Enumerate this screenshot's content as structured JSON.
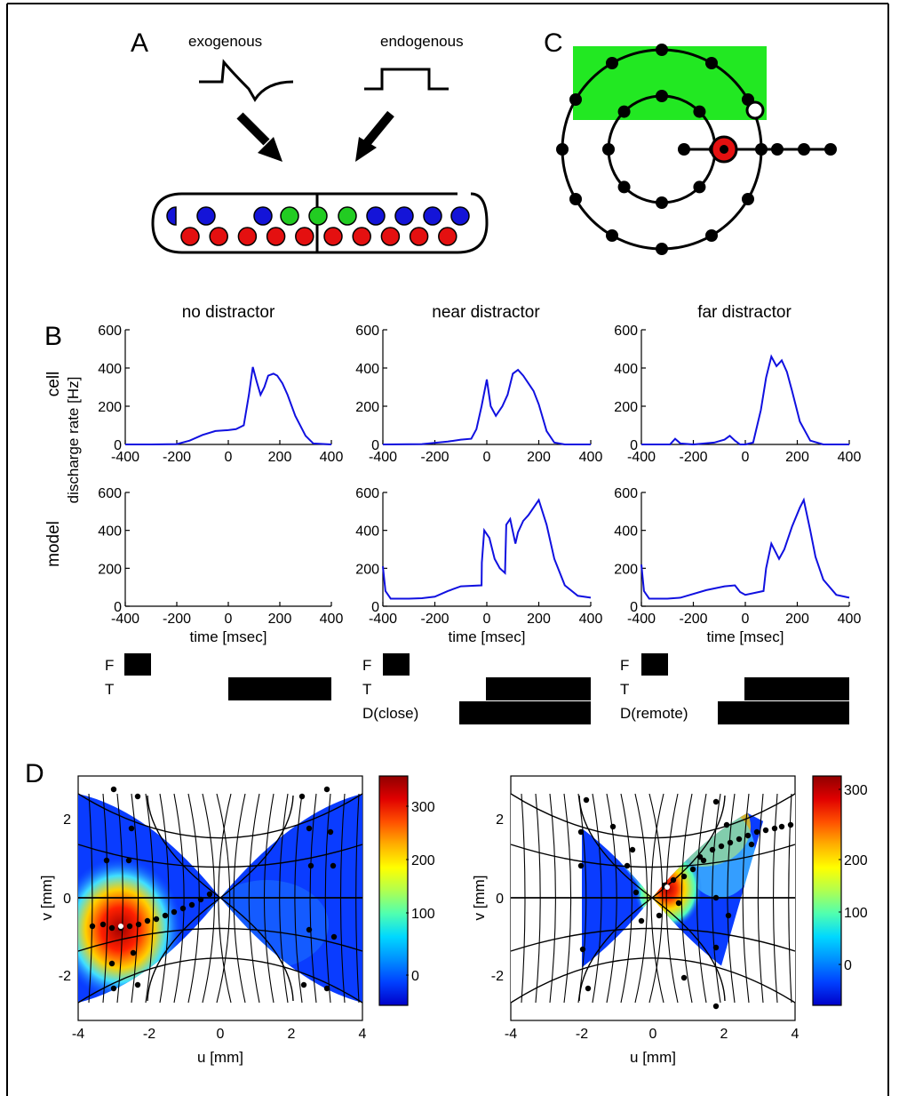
{
  "panels": {
    "a": "A",
    "b": "B",
    "c": "C",
    "d": "D"
  },
  "panel_a": {
    "exogenous_label": "exogenous",
    "endogenous_label": "endogenous",
    "colors": {
      "blue": "#1414d8",
      "green": "#22cc22",
      "red": "#e41010"
    },
    "top_row": [
      "blue",
      "blue",
      "green",
      "green",
      "green",
      "blue",
      "blue",
      "blue",
      "blue"
    ],
    "bottom_row": [
      "red",
      "red",
      "red",
      "red",
      "red",
      "red",
      "red",
      "red",
      "red",
      "red"
    ]
  },
  "panel_c": {
    "field_color": "#22e822",
    "target_color": "#e41010"
  },
  "panel_b": {
    "col_titles": [
      "no distractor",
      "near distractor",
      "far distractor"
    ],
    "row_labels": [
      "cell",
      "model"
    ],
    "ylabel": "discharge rate [Hz]",
    "xlabel": "time [msec]",
    "xticks": [
      "-400",
      "-200",
      "0",
      "200",
      "400"
    ],
    "yticks": [
      "0",
      "200",
      "400",
      "600"
    ],
    "events": {
      "f": "F",
      "t": "T",
      "d_close": "D(close)",
      "d_remote": "D(remote)"
    }
  },
  "panel_d": {
    "xlabel": "u [mm]",
    "ylabel": "v [mm]",
    "xticks": [
      "-4",
      "-2",
      "0",
      "2",
      "4"
    ],
    "yticks": [
      "-2",
      "0",
      "2"
    ],
    "colorbar1_ticks": [
      "0",
      "100",
      "200",
      "300"
    ],
    "colorbar2_ticks": [
      "0",
      "100",
      "200",
      "300"
    ],
    "colormap": [
      "#0000c8",
      "#0040ff",
      "#0090ff",
      "#00d8ff",
      "#50ffb0",
      "#b0ff50",
      "#ffff00",
      "#ffb000",
      "#ff5000",
      "#e00000",
      "#900000"
    ]
  },
  "chart_data": [
    {
      "type": "line",
      "panel": "cell / no distractor",
      "xlim": [
        -400,
        400
      ],
      "ylim": [
        0,
        600
      ],
      "x": [
        -400,
        -300,
        -200,
        -150,
        -100,
        -50,
        0,
        30,
        60,
        80,
        95,
        110,
        125,
        140,
        155,
        175,
        190,
        210,
        230,
        260,
        300,
        330,
        400
      ],
      "y": [
        0,
        0,
        2,
        20,
        50,
        70,
        75,
        80,
        100,
        260,
        405,
        330,
        260,
        300,
        360,
        370,
        360,
        320,
        260,
        150,
        45,
        5,
        0
      ]
    },
    {
      "type": "line",
      "panel": "cell / near distractor",
      "xlim": [
        -400,
        400
      ],
      "ylim": [
        0,
        600
      ],
      "x": [
        -400,
        -250,
        -150,
        -100,
        -60,
        -40,
        -20,
        0,
        15,
        35,
        60,
        80,
        100,
        120,
        140,
        160,
        180,
        200,
        230,
        260,
        300,
        400
      ],
      "y": [
        0,
        2,
        15,
        25,
        30,
        80,
        200,
        340,
        200,
        150,
        200,
        260,
        370,
        390,
        360,
        320,
        280,
        210,
        70,
        10,
        0,
        0
      ]
    },
    {
      "type": "line",
      "panel": "cell / far distractor",
      "xlim": [
        -400,
        400
      ],
      "ylim": [
        0,
        600
      ],
      "x": [
        -400,
        -290,
        -270,
        -250,
        -200,
        -120,
        -80,
        -60,
        -40,
        -20,
        0,
        30,
        60,
        80,
        100,
        120,
        140,
        160,
        180,
        210,
        250,
        300,
        400
      ],
      "y": [
        0,
        0,
        30,
        5,
        0,
        10,
        25,
        45,
        20,
        0,
        0,
        10,
        180,
        350,
        460,
        410,
        440,
        380,
        280,
        120,
        20,
        0,
        0
      ]
    },
    {
      "type": "line",
      "panel": "model / no distractor",
      "xlim": [
        -400,
        400
      ],
      "ylim": [
        0,
        600
      ],
      "x": [],
      "y": []
    },
    {
      "type": "line",
      "panel": "model / near distractor",
      "xlim": [
        -400,
        400
      ],
      "ylim": [
        0,
        600
      ],
      "x": [
        -400,
        -390,
        -370,
        -300,
        -250,
        -200,
        -150,
        -100,
        -20,
        -19,
        -10,
        10,
        30,
        50,
        70,
        75,
        90,
        110,
        120,
        140,
        160,
        200,
        230,
        260,
        300,
        350,
        400
      ],
      "y": [
        210,
        80,
        40,
        40,
        42,
        50,
        80,
        105,
        110,
        230,
        400,
        360,
        250,
        200,
        175,
        430,
        460,
        330,
        390,
        450,
        480,
        560,
        430,
        250,
        110,
        55,
        45
      ]
    },
    {
      "type": "line",
      "panel": "model / far distractor",
      "xlim": [
        -400,
        400
      ],
      "ylim": [
        0,
        600
      ],
      "x": [
        -400,
        -390,
        -370,
        -300,
        -250,
        -150,
        -80,
        -40,
        -20,
        0,
        70,
        80,
        100,
        130,
        150,
        180,
        210,
        225,
        250,
        270,
        300,
        350,
        400
      ],
      "y": [
        220,
        80,
        40,
        40,
        45,
        85,
        105,
        110,
        75,
        60,
        80,
        200,
        330,
        250,
        300,
        420,
        520,
        560,
        400,
        260,
        140,
        60,
        45
      ]
    }
  ]
}
